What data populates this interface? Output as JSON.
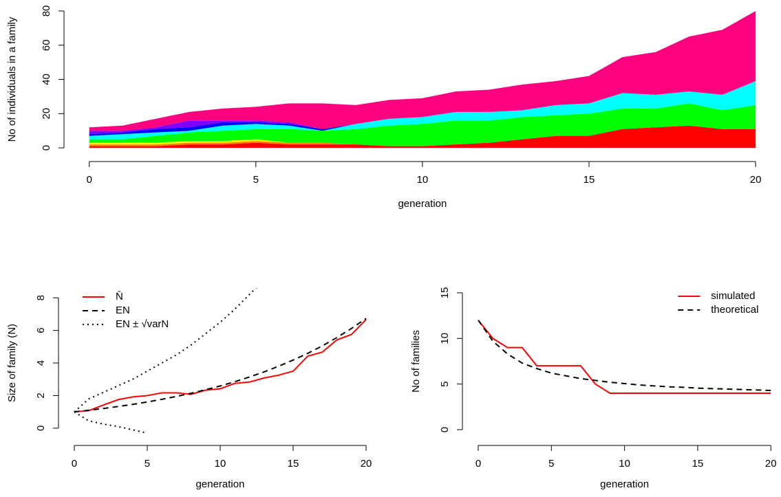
{
  "chart_data": [
    {
      "type": "stacked-area",
      "xlabel": "generation",
      "ylabel": "No of individuals in a family",
      "x": [
        0,
        1,
        2,
        3,
        4,
        5,
        6,
        7,
        8,
        9,
        10,
        11,
        12,
        13,
        14,
        15,
        16,
        17,
        18,
        19,
        20
      ],
      "xlim": [
        -0.8,
        20.7
      ],
      "ylim": [
        -8,
        84
      ],
      "xticks": [
        0,
        5,
        10,
        15,
        20
      ],
      "yticks": [
        0,
        20,
        40,
        60,
        80
      ],
      "series": [
        {
          "color": "#ff0000",
          "values": [
            1,
            1,
            1,
            2,
            2,
            3,
            2,
            2,
            2,
            1,
            1,
            2,
            3,
            5,
            7,
            7,
            11,
            12,
            13,
            11,
            11
          ]
        },
        {
          "color": "#ff8000",
          "values": [
            1,
            1,
            1,
            1,
            1,
            1,
            1,
            1,
            0,
            0,
            0,
            0,
            0,
            0,
            0,
            0,
            0,
            0,
            0,
            0,
            0
          ]
        },
        {
          "color": "#ffff00",
          "values": [
            1,
            1,
            1,
            1,
            1,
            1,
            0,
            0,
            0,
            0,
            0,
            0,
            0,
            0,
            0,
            0,
            0,
            0,
            0,
            0,
            0
          ]
        },
        {
          "color": "#00ff00",
          "values": [
            2,
            2,
            4,
            5,
            6,
            6,
            8,
            7,
            9,
            12,
            13,
            14,
            13,
            13,
            12,
            13,
            12,
            11,
            13,
            11,
            14
          ]
        },
        {
          "color": "#00ffff",
          "values": [
            2,
            3,
            2,
            1,
            3,
            3,
            2,
            0,
            3,
            4,
            4,
            5,
            5,
            4,
            6,
            6,
            9,
            8,
            7,
            9,
            14
          ]
        },
        {
          "color": "#0000ff",
          "values": [
            1,
            1,
            2,
            2,
            2,
            1,
            1,
            1,
            0,
            0,
            0,
            0,
            0,
            0,
            0,
            0,
            0,
            0,
            0,
            0,
            0
          ]
        },
        {
          "color": "#8000ff",
          "values": [
            2,
            1,
            1,
            4,
            1,
            1,
            1,
            0,
            0,
            0,
            0,
            0,
            0,
            0,
            0,
            0,
            0,
            0,
            0,
            0,
            0
          ]
        },
        {
          "color": "#ff0080",
          "values": [
            2,
            3,
            5,
            5,
            7,
            8,
            11,
            15,
            11,
            11,
            11,
            12,
            13,
            15,
            14,
            16,
            21,
            25,
            32,
            38,
            41
          ]
        }
      ]
    },
    {
      "type": "line",
      "xlabel": "generation",
      "ylabel": "Size of family (N)",
      "legend": "top-left",
      "x": [
        0,
        1,
        2,
        3,
        4,
        5,
        6,
        7,
        8,
        9,
        10,
        11,
        12,
        13,
        14,
        15,
        16,
        17,
        18,
        19,
        20
      ],
      "xlim": [
        -0.8,
        20.8
      ],
      "ylim": [
        -0.3,
        8.6
      ],
      "xticks": [
        0,
        5,
        10,
        15,
        20
      ],
      "yticks": [
        0,
        2,
        4,
        6,
        8
      ],
      "series": [
        {
          "name": "N̄",
          "color": "#ff0000",
          "dash": "solid",
          "values": [
            1,
            1.08,
            1.42,
            1.75,
            1.92,
            2,
            2.17,
            2.17,
            2.08,
            2.33,
            2.42,
            2.75,
            2.83,
            3.08,
            3.25,
            3.5,
            4.42,
            4.67,
            5.42,
            5.75,
            6.67
          ]
        },
        {
          "name": "EN",
          "color": "#000000",
          "dash": "dashed",
          "values": [
            1,
            1.1,
            1.21,
            1.33,
            1.46,
            1.61,
            1.77,
            1.95,
            2.14,
            2.36,
            2.59,
            2.85,
            3.14,
            3.45,
            3.8,
            4.18,
            4.59,
            5.05,
            5.56,
            6.12,
            6.73
          ]
        },
        {
          "name": "EN ± √varN",
          "color": "#000000",
          "dash": "dotted",
          "values": [
            1,
            1.8,
            2.2,
            2.6,
            3.0,
            3.5,
            4.0,
            4.5,
            5.1,
            5.8,
            6.5,
            7.3,
            8.2,
            9.1,
            null,
            null,
            null,
            null,
            null,
            null,
            null
          ]
        },
        {
          "color": "#000000",
          "dash": "dotted",
          "values": [
            1,
            0.45,
            0.25,
            0.1,
            -0.1,
            -0.3,
            null,
            null,
            null,
            null,
            null,
            null,
            null,
            null,
            null,
            null,
            null,
            null,
            null,
            null,
            null
          ]
        }
      ]
    },
    {
      "type": "line",
      "xlabel": "generation",
      "ylabel": "No of families",
      "legend": "top-right",
      "x": [
        0,
        1,
        2,
        3,
        4,
        5,
        6,
        7,
        8,
        9,
        10,
        11,
        12,
        13,
        14,
        15,
        16,
        17,
        18,
        19,
        20
      ],
      "xlim": [
        -0.8,
        20.6
      ],
      "ylim": [
        -0.6,
        15.6
      ],
      "xticks": [
        0,
        5,
        10,
        15,
        20
      ],
      "yticks": [
        0,
        5,
        10,
        15
      ],
      "series": [
        {
          "name": "simulated",
          "color": "#ff0000",
          "dash": "solid",
          "values": [
            12,
            10,
            9,
            9,
            7,
            7,
            7,
            7,
            5,
            4,
            4,
            4,
            4,
            4,
            4,
            4,
            4,
            4,
            4,
            4,
            4
          ]
        },
        {
          "name": "theoretical",
          "color": "#000000",
          "dash": "dashed",
          "values": [
            12,
            9.7,
            8.3,
            7.3,
            6.7,
            6.2,
            5.9,
            5.6,
            5.4,
            5.2,
            5.05,
            4.9,
            4.8,
            4.7,
            4.65,
            4.55,
            4.5,
            4.45,
            4.4,
            4.35,
            4.3
          ]
        }
      ]
    }
  ]
}
